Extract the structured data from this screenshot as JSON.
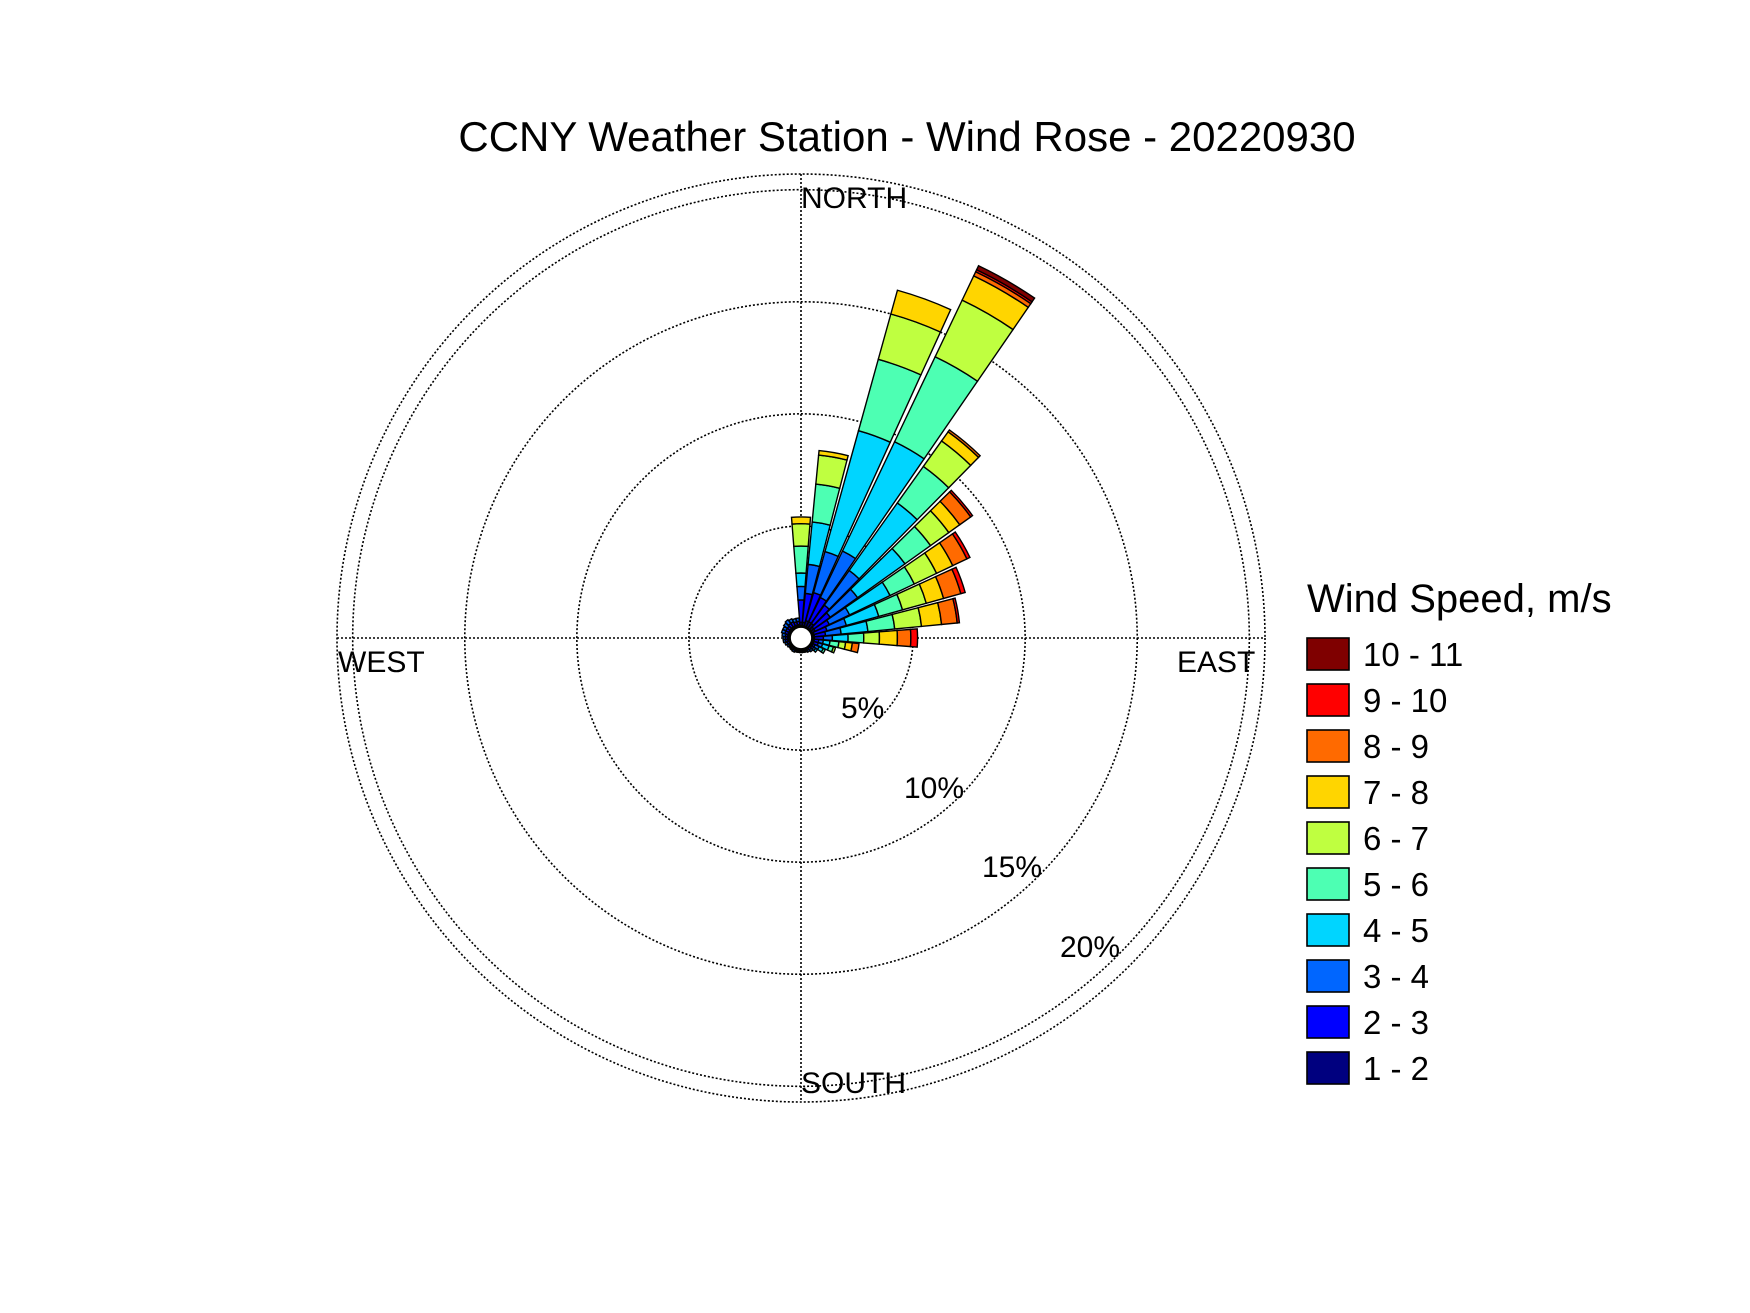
{
  "chart_data": {
    "type": "wind-rose",
    "title": "CCNY Weather Station - Wind Rose - 20220930",
    "directions": {
      "north": "NORTH",
      "east": "EAST",
      "south": "SOUTH",
      "west": "WEST"
    },
    "radial_ticks": [
      5,
      10,
      15,
      20
    ],
    "radial_tick_labels": [
      "5%",
      "10%",
      "15%",
      "20%"
    ],
    "rmax": 20.7,
    "grid": "dotted",
    "legend_position": "right",
    "legend_title": "Wind Speed, m/s",
    "speed_bins": [
      {
        "label": "10 - 11",
        "color": "#7f0000"
      },
      {
        "label": "9 - 10",
        "color": "#ff0000"
      },
      {
        "label": "8 - 9",
        "color": "#ff6a00"
      },
      {
        "label": "7 - 8",
        "color": "#ffd500"
      },
      {
        "label": "6 - 7",
        "color": "#bfff40"
      },
      {
        "label": "5 - 6",
        "color": "#4dffb3"
      },
      {
        "label": "4 - 5",
        "color": "#00d5ff"
      },
      {
        "label": "3 - 4",
        "color": "#0066ff"
      },
      {
        "label": "2 - 3",
        "color": "#0000ff"
      },
      {
        "label": "1 - 2",
        "color": "#00007f"
      }
    ],
    "petal_width_deg": 9,
    "petal_note": "cumulative percentage edges per direction (deg, clockwise from north); bins from 1-2 m/s outward",
    "petals": [
      {
        "deg": 0,
        "edges": [
          0.7,
          1.7,
          2.3,
          2.9,
          4.1,
          5.1,
          5.4
        ]
      },
      {
        "deg": 10,
        "edges": [
          0.7,
          2.0,
          3.3,
          5.2,
          6.9,
          8.2,
          8.4
        ]
      },
      {
        "deg": 20,
        "edges": [
          0.8,
          2.1,
          4.0,
          9.6,
          12.9,
          15.0,
          16.1
        ]
      },
      {
        "deg": 30,
        "edges": [
          0.8,
          2.0,
          4.3,
          9.7,
          13.9,
          16.7,
          17.9,
          18.1,
          18.2,
          18.4
        ]
      },
      {
        "deg": 40,
        "edges": [
          0.8,
          1.8,
          3.7,
          7.4,
          9.4,
          10.8,
          11.3,
          11.4
        ]
      },
      {
        "deg": 50,
        "edges": [
          0.7,
          1.6,
          3.1,
          5.7,
          7.1,
          8.1,
          8.7,
          9.3,
          9.4
        ]
      },
      {
        "deg": 60,
        "edges": [
          0.7,
          1.4,
          2.4,
          4.4,
          5.6,
          6.7,
          7.5,
          8.2,
          8.35
        ]
      },
      {
        "deg": 70,
        "edges": [
          0.6,
          1.2,
          2.1,
          3.6,
          4.7,
          5.8,
          6.6,
          7.4,
          7.6
        ]
      },
      {
        "deg": 80,
        "edges": [
          0.6,
          1.1,
          1.8,
          3.0,
          4.2,
          5.4,
          6.3,
          7.0,
          7.1
        ]
      },
      {
        "deg": 90,
        "edges": [
          0.6,
          1.0,
          1.4,
          2.1,
          2.8,
          3.5,
          4.3,
          4.9,
          5.2
        ]
      },
      {
        "deg": 100,
        "edges": [
          0.6,
          0.8,
          1.0,
          1.3,
          1.7,
          2.0,
          2.3,
          2.6
        ]
      },
      {
        "deg": 110,
        "edges": [
          0.6,
          0.8,
          1.0,
          1.3,
          1.5,
          1.6
        ]
      },
      {
        "deg": 120,
        "edges": [
          0.6,
          0.7,
          0.9,
          1.1,
          1.2
        ]
      },
      {
        "deg": 130,
        "edges": [
          0.6,
          0.7,
          0.8,
          0.9
        ]
      },
      {
        "deg": 140,
        "edges": [
          0.55,
          0.65,
          0.75
        ]
      },
      {
        "deg": 150,
        "edges": [
          0.55,
          0.62,
          0.7
        ]
      },
      {
        "deg": 160,
        "edges": [
          0.55,
          0.6,
          0.66
        ]
      },
      {
        "deg": 170,
        "edges": [
          0.55,
          0.6,
          0.65
        ]
      },
      {
        "deg": 180,
        "edges": [
          0.55,
          0.6,
          0.65
        ]
      },
      {
        "deg": 190,
        "edges": [
          0.55,
          0.6,
          0.65
        ]
      },
      {
        "deg": 200,
        "edges": [
          0.55,
          0.6,
          0.66
        ]
      },
      {
        "deg": 210,
        "edges": [
          0.55,
          0.62,
          0.7
        ]
      },
      {
        "deg": 220,
        "edges": [
          0.55,
          0.62,
          0.68
        ]
      },
      {
        "deg": 230,
        "edges": [
          0.55,
          0.6,
          0.66
        ]
      },
      {
        "deg": 240,
        "edges": [
          0.55,
          0.62,
          0.7
        ]
      },
      {
        "deg": 250,
        "edges": [
          0.55,
          0.65,
          0.75
        ]
      },
      {
        "deg": 260,
        "edges": [
          0.6,
          0.7,
          0.8
        ]
      },
      {
        "deg": 270,
        "edges": [
          0.6,
          0.7,
          0.8
        ]
      },
      {
        "deg": 280,
        "edges": [
          0.6,
          0.7,
          0.85
        ]
      },
      {
        "deg": 290,
        "edges": [
          0.6,
          0.75,
          0.9
        ]
      },
      {
        "deg": 300,
        "edges": [
          0.6,
          0.75,
          0.9
        ]
      },
      {
        "deg": 310,
        "edges": [
          0.6,
          0.75,
          0.95
        ]
      },
      {
        "deg": 320,
        "edges": [
          0.6,
          0.8,
          1.0
        ]
      },
      {
        "deg": 330,
        "edges": [
          0.6,
          0.8,
          0.95
        ]
      },
      {
        "deg": 340,
        "edges": [
          0.6,
          0.75,
          0.9
        ]
      },
      {
        "deg": 350,
        "edges": [
          0.6,
          0.75,
          0.9
        ]
      }
    ]
  }
}
